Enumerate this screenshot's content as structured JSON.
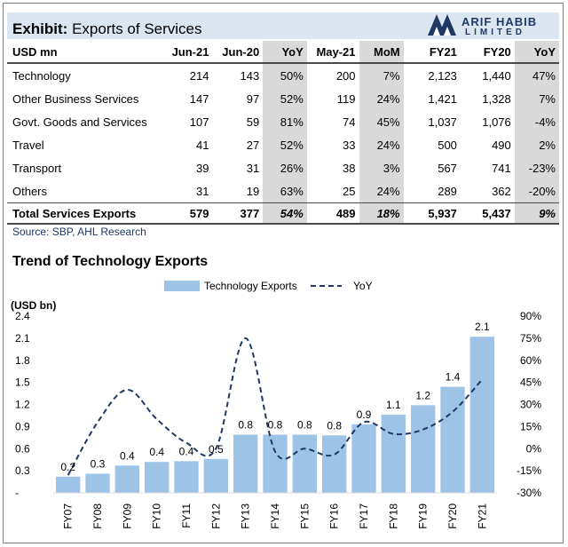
{
  "exhibit": {
    "title_bold": "Exhibit:",
    "title_rest": " Exports of Services"
  },
  "logo": {
    "line1": "ARIF HABIB",
    "line2": "LIMITED"
  },
  "table": {
    "headers": [
      "USD mn",
      "Jun-21",
      "Jun-20",
      "YoY",
      "May-21",
      "MoM",
      "FY21",
      "FY20",
      "YoY"
    ],
    "rows": [
      [
        "Technology",
        "214",
        "143",
        "50%",
        "200",
        "7%",
        "2,123",
        "1,440",
        "47%"
      ],
      [
        "Other Business Services",
        "147",
        "97",
        "52%",
        "119",
        "24%",
        "1,421",
        "1,328",
        "7%"
      ],
      [
        "Govt. Goods and Services",
        "107",
        "59",
        "81%",
        "74",
        "45%",
        "1,037",
        "1,076",
        "-4%"
      ],
      [
        "Travel",
        "41",
        "27",
        "52%",
        "33",
        "24%",
        "500",
        "490",
        "2%"
      ],
      [
        "Transport",
        "39",
        "31",
        "26%",
        "38",
        "3%",
        "567",
        "741",
        "-23%"
      ],
      [
        "Others",
        "31",
        "19",
        "63%",
        "25",
        "24%",
        "289",
        "362",
        "-20%"
      ],
      [
        "Total Services Exports",
        "579",
        "377",
        "54%",
        "489",
        "18%",
        "5,937",
        "5,437",
        "9%"
      ]
    ],
    "source": "Source: SBP, AHL Research"
  },
  "chart_title": "Trend of Technology Exports",
  "chart_data": {
    "type": "bar",
    "categories": [
      "FY07",
      "FY08",
      "FY09",
      "FY10",
      "FY11",
      "FY12",
      "FY13",
      "FY14",
      "FY15",
      "FY16",
      "FY17",
      "FY18",
      "FY19",
      "FY20",
      "FY21"
    ],
    "series": [
      {
        "name": "Technology Exports",
        "kind": "bar",
        "axis": "left",
        "color": "#9dc3e6",
        "values": [
          0.2,
          0.3,
          0.4,
          0.4,
          0.4,
          0.5,
          0.8,
          0.8,
          0.8,
          0.8,
          0.9,
          1.1,
          1.2,
          1.4,
          2.1
        ],
        "plot_values": [
          0.22,
          0.26,
          0.37,
          0.42,
          0.43,
          0.46,
          0.79,
          0.79,
          0.79,
          0.78,
          0.93,
          1.06,
          1.19,
          1.44,
          2.12
        ],
        "labels": [
          "0.2",
          "0.3",
          "0.4",
          "0.4",
          "0.4",
          "0.5",
          "0.8",
          "0.8",
          "0.8",
          "0.8",
          "0.9",
          "1.1",
          "1.2",
          "1.4",
          "2.1"
        ]
      },
      {
        "name": "YoY",
        "kind": "line",
        "axis": "right",
        "color": "#1f3864",
        "dash": true,
        "values": [
          -18,
          18,
          40,
          20,
          4,
          0,
          75,
          -2,
          0,
          -4,
          18,
          10,
          13,
          25,
          47
        ]
      }
    ],
    "ylabel_left": "(USD bn)",
    "y_left": {
      "min": 0,
      "max": 2.4,
      "ticks": [
        0,
        0.3,
        0.6,
        0.9,
        1.2,
        1.5,
        1.8,
        2.1,
        2.4
      ],
      "tick_labels": [
        "-",
        "0.3",
        "0.6",
        "0.9",
        "1.2",
        "1.5",
        "1.8",
        "2.1",
        "2.4"
      ]
    },
    "y_right": {
      "min": -30,
      "max": 90,
      "ticks": [
        -30,
        -15,
        0,
        15,
        30,
        45,
        60,
        75,
        90
      ],
      "tick_labels": [
        "-30%",
        "-15%",
        "0%",
        "15%",
        "30%",
        "45%",
        "60%",
        "75%",
        "90%"
      ]
    },
    "legend": {
      "placement": "top-center",
      "items": [
        "Technology Exports",
        "YoY"
      ]
    },
    "grid": false
  }
}
